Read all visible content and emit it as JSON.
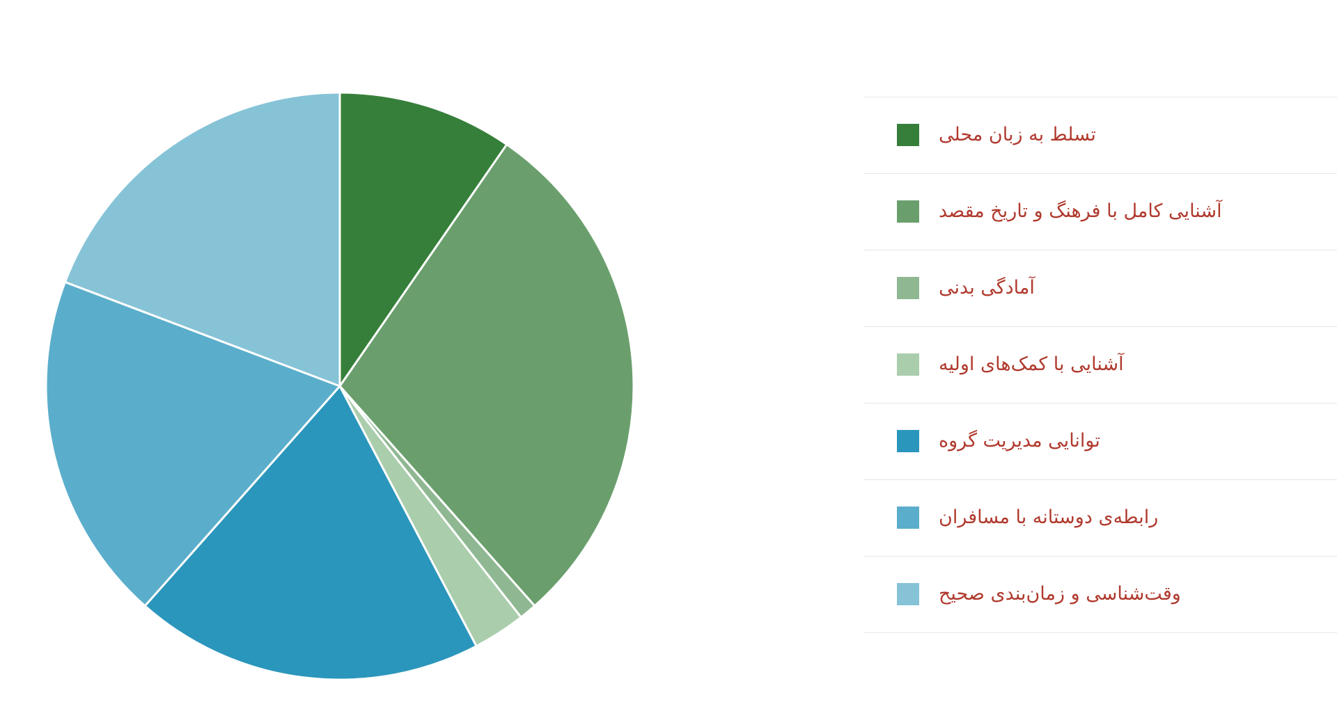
{
  "chart_data": {
    "type": "pie",
    "legend_position": "right",
    "slices": [
      {
        "label": "تسلط به زبان محلی",
        "value": 10,
        "color": "#367f3a"
      },
      {
        "label": "آشنایی کامل با فرهنگ و تاریخ مقصد",
        "value": 30,
        "color": "#6a9f6d"
      },
      {
        "label": "آمادگی بدنی",
        "value": 1,
        "color": "#8fb892"
      },
      {
        "label": "آشنایی با کمک‌های اولیه",
        "value": 3,
        "color": "#aacdac"
      },
      {
        "label": "توانایی مدیریت گروه",
        "value": 20,
        "color": "#2b96bb"
      },
      {
        "label": "رابطه‌ی دوستانه با مسافران",
        "value": 20,
        "color": "#5aaecb"
      },
      {
        "label": "وقت‌شناسی و زمان‌بندی صحیح",
        "value": 20,
        "color": "#86c3d7"
      }
    ]
  }
}
